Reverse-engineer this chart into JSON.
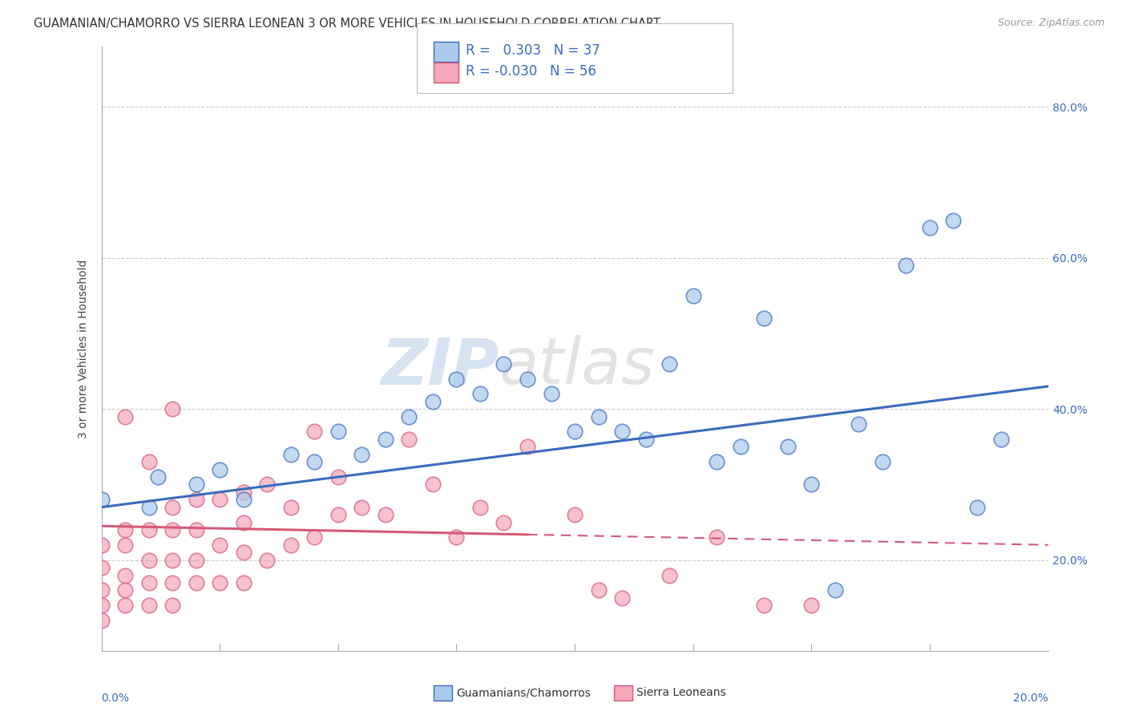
{
  "title": "GUAMANIAN/CHAMORRO VS SIERRA LEONEAN 3 OR MORE VEHICLES IN HOUSEHOLD CORRELATION CHART",
  "source": "Source: ZipAtlas.com",
  "ylabel": "3 or more Vehicles in Household",
  "y_ticks": [
    0.2,
    0.4,
    0.6,
    0.8
  ],
  "y_tick_labels": [
    "20.0%",
    "40.0%",
    "60.0%",
    "80.0%"
  ],
  "xlim": [
    0.0,
    0.2
  ],
  "ylim": [
    0.08,
    0.88
  ],
  "blue_R": "0.303",
  "blue_N": "37",
  "pink_R": "-0.030",
  "pink_N": "56",
  "blue_color": "#aac9ed",
  "pink_color": "#f4a7b9",
  "blue_line_color": "#3a6bbf",
  "pink_line_color": "#d45a7a",
  "watermark_ZIP": "ZIP",
  "watermark_atlas": "atlas",
  "legend_label_blue": "Guamanians/Chamorros",
  "legend_label_pink": "Sierra Leoneans",
  "blue_scatter_x": [
    0.0,
    0.01,
    0.012,
    0.02,
    0.025,
    0.03,
    0.04,
    0.045,
    0.05,
    0.055,
    0.06,
    0.065,
    0.07,
    0.075,
    0.08,
    0.085,
    0.09,
    0.095,
    0.1,
    0.105,
    0.11,
    0.115,
    0.12,
    0.125,
    0.13,
    0.135,
    0.14,
    0.145,
    0.15,
    0.155,
    0.16,
    0.165,
    0.17,
    0.175,
    0.18,
    0.185,
    0.19
  ],
  "blue_scatter_y": [
    0.28,
    0.27,
    0.31,
    0.3,
    0.32,
    0.28,
    0.34,
    0.33,
    0.37,
    0.34,
    0.36,
    0.39,
    0.41,
    0.44,
    0.42,
    0.46,
    0.44,
    0.42,
    0.37,
    0.39,
    0.37,
    0.36,
    0.46,
    0.55,
    0.33,
    0.35,
    0.52,
    0.35,
    0.3,
    0.16,
    0.38,
    0.33,
    0.59,
    0.64,
    0.65,
    0.27,
    0.36
  ],
  "pink_scatter_x": [
    0.0,
    0.0,
    0.0,
    0.0,
    0.0,
    0.005,
    0.005,
    0.005,
    0.005,
    0.005,
    0.005,
    0.01,
    0.01,
    0.01,
    0.01,
    0.01,
    0.015,
    0.015,
    0.015,
    0.015,
    0.015,
    0.015,
    0.02,
    0.02,
    0.02,
    0.02,
    0.025,
    0.025,
    0.025,
    0.03,
    0.03,
    0.03,
    0.03,
    0.035,
    0.035,
    0.04,
    0.04,
    0.045,
    0.045,
    0.05,
    0.05,
    0.055,
    0.06,
    0.065,
    0.07,
    0.075,
    0.08,
    0.085,
    0.09,
    0.1,
    0.105,
    0.11,
    0.12,
    0.13,
    0.14,
    0.15
  ],
  "pink_scatter_y": [
    0.14,
    0.16,
    0.19,
    0.22,
    0.12,
    0.14,
    0.16,
    0.18,
    0.22,
    0.24,
    0.39,
    0.14,
    0.17,
    0.2,
    0.24,
    0.33,
    0.14,
    0.17,
    0.2,
    0.24,
    0.27,
    0.4,
    0.17,
    0.2,
    0.24,
    0.28,
    0.17,
    0.22,
    0.28,
    0.17,
    0.21,
    0.25,
    0.29,
    0.2,
    0.3,
    0.22,
    0.27,
    0.23,
    0.37,
    0.26,
    0.31,
    0.27,
    0.26,
    0.36,
    0.3,
    0.23,
    0.27,
    0.25,
    0.35,
    0.26,
    0.16,
    0.15,
    0.18,
    0.23,
    0.14,
    0.14
  ],
  "blue_trendline_x": [
    0.0,
    0.2
  ],
  "blue_trendline_y": [
    0.27,
    0.43
  ],
  "pink_trendline_x": [
    0.0,
    0.2
  ],
  "pink_trendline_y_solid_end": 0.09,
  "pink_trendline_y": [
    0.245,
    0.22
  ]
}
